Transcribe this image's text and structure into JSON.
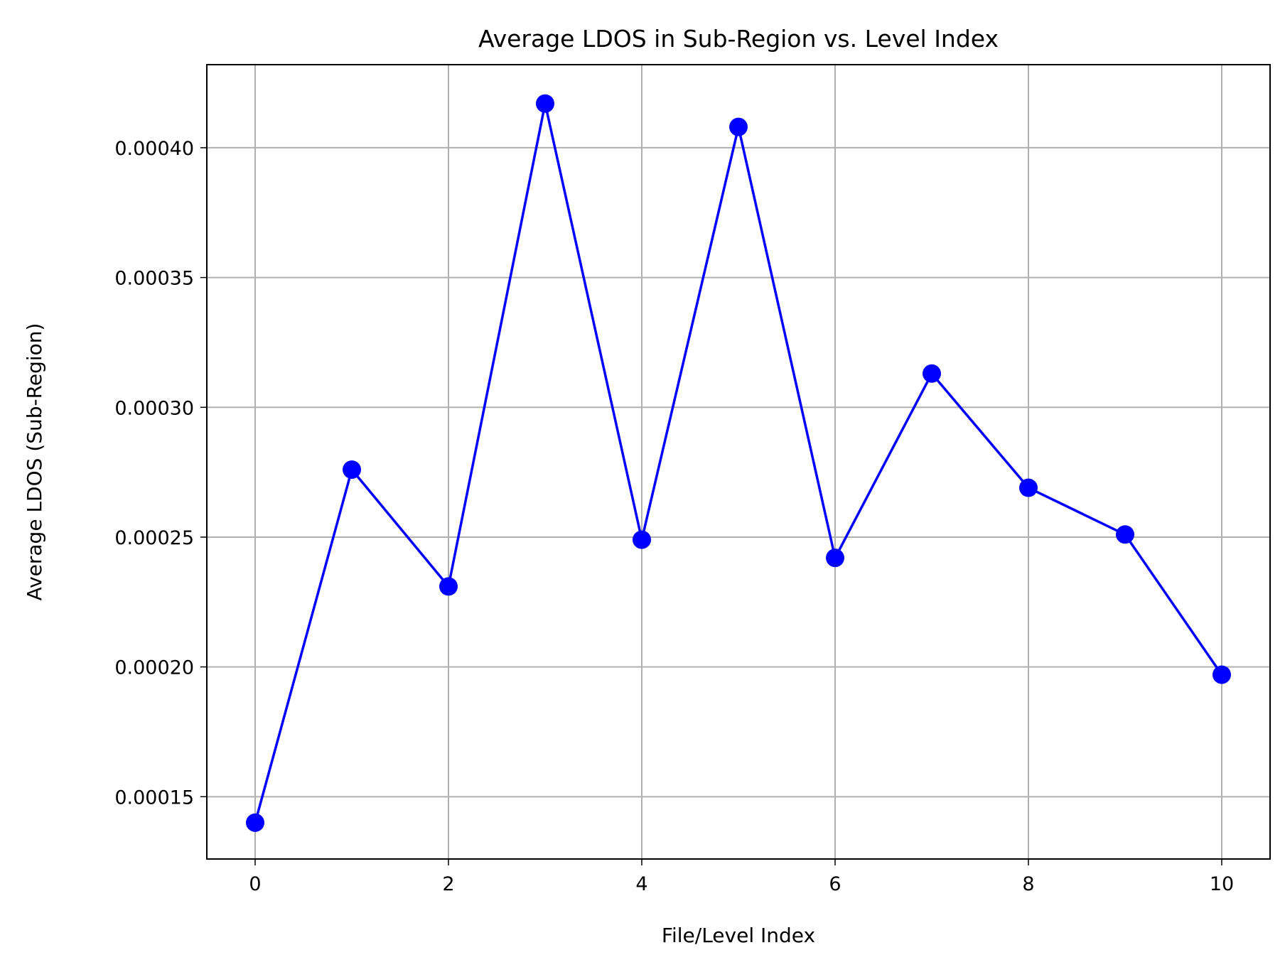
{
  "chart_data": {
    "type": "line",
    "title": "Average LDOS in Sub-Region vs. Level Index",
    "xlabel": "File/Level Index",
    "ylabel": "Average LDOS (Sub-Region)",
    "x": [
      0,
      1,
      2,
      3,
      4,
      5,
      6,
      7,
      8,
      9,
      10
    ],
    "series": [
      {
        "values": [
          0.00014,
          0.000276,
          0.000231,
          0.000417,
          0.000249,
          0.000408,
          0.000242,
          0.000313,
          0.000269,
          0.000251,
          0.000197
        ],
        "color": "#0000ff",
        "marker": "circle"
      }
    ],
    "xlim": [
      -0.5,
      10.5
    ],
    "ylim": [
      0.000126,
      0.000432
    ],
    "xticks": [
      0,
      2,
      4,
      6,
      8,
      10
    ],
    "xtick_labels": [
      "0",
      "2",
      "4",
      "6",
      "8",
      "10"
    ],
    "yticks": [
      0.00015,
      0.0002,
      0.00025,
      0.0003,
      0.00035,
      0.0004
    ],
    "ytick_labels": [
      "0.00015",
      "0.00020",
      "0.00025",
      "0.00030",
      "0.00035",
      "0.00040"
    ],
    "grid": true
  }
}
